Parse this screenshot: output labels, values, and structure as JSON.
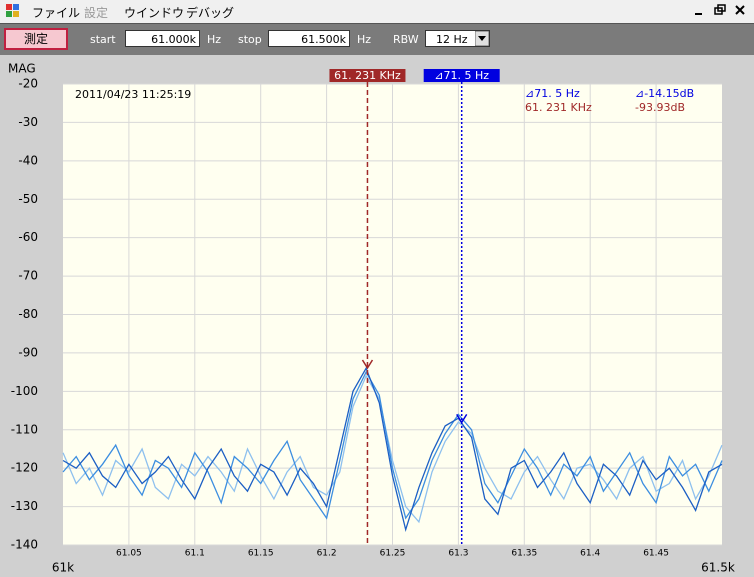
{
  "menu": {
    "items": [
      "ファイル",
      "設定",
      "ウインドウ",
      "デバッグ"
    ]
  },
  "toolbar": {
    "button": "測定",
    "start_label": "start",
    "start_value": "61.000k",
    "start_unit": "Hz",
    "stop_label": "stop",
    "stop_value": "61.500k",
    "stop_unit": "Hz",
    "rbw_label": "RBW",
    "rbw_value": "12 Hz"
  },
  "chart_data": {
    "type": "line",
    "y_label": "MAG",
    "x": [
      61.0,
      61.01,
      61.02,
      61.03,
      61.04,
      61.05,
      61.06,
      61.07,
      61.08,
      61.09,
      61.1,
      61.11,
      61.12,
      61.13,
      61.14,
      61.15,
      61.16,
      61.17,
      61.18,
      61.19,
      61.2,
      61.21,
      61.22,
      61.23,
      61.24,
      61.25,
      61.26,
      61.27,
      61.28,
      61.29,
      61.3,
      61.31,
      61.32,
      61.33,
      61.34,
      61.35,
      61.36,
      61.37,
      61.38,
      61.39,
      61.4,
      61.41,
      61.42,
      61.43,
      61.44,
      61.45,
      61.46,
      61.47,
      61.48,
      61.49,
      61.5
    ],
    "series": [
      {
        "color": "#1c5fc4",
        "values": [
          -118,
          -120,
          -116,
          -122,
          -125,
          -119,
          -124,
          -121,
          -117,
          -123,
          -128,
          -120,
          -115,
          -122,
          -126,
          -119,
          -121,
          -127,
          -120,
          -124,
          -130,
          -115,
          -100,
          -94,
          -103,
          -122,
          -136,
          -125,
          -116,
          -109,
          -107,
          -112,
          -128,
          -132,
          -120,
          -118,
          -125,
          -121,
          -116,
          -124,
          -129,
          -119,
          -122,
          -127,
          -118,
          -123,
          -120,
          -125,
          -131,
          -121,
          -119
        ]
      },
      {
        "color": "#3c8ee0",
        "values": [
          -121,
          -117,
          -123,
          -119,
          -114,
          -122,
          -127,
          -118,
          -120,
          -125,
          -116,
          -121,
          -129,
          -117,
          -120,
          -124,
          -118,
          -113,
          -123,
          -128,
          -133,
          -118,
          -102,
          -95,
          -101,
          -120,
          -133,
          -128,
          -118,
          -111,
          -106,
          -110,
          -124,
          -129,
          -122,
          -115,
          -120,
          -127,
          -119,
          -122,
          -117,
          -126,
          -121,
          -116,
          -124,
          -129,
          -117,
          -122,
          -119,
          -126,
          -118
        ]
      },
      {
        "color": "#8ec0ee",
        "values": [
          -116,
          -124,
          -120,
          -127,
          -118,
          -121,
          -115,
          -125,
          -128,
          -119,
          -122,
          -117,
          -121,
          -126,
          -115,
          -122,
          -128,
          -121,
          -117,
          -125,
          -127,
          -121,
          -104,
          -96,
          -102,
          -118,
          -130,
          -134,
          -121,
          -113,
          -108,
          -111,
          -120,
          -126,
          -128,
          -121,
          -117,
          -123,
          -128,
          -120,
          -119,
          -123,
          -128,
          -120,
          -117,
          -126,
          -124,
          -118,
          -128,
          -122,
          -114
        ]
      }
    ],
    "xlim": [
      61.0,
      61.5
    ],
    "xticks": [
      {
        "value": 61.0,
        "label": "61k"
      },
      61.05,
      61.1,
      61.15,
      61.2,
      61.25,
      61.3,
      61.35,
      61.4,
      61.45,
      {
        "value": 61.5,
        "label": "61.5k"
      }
    ],
    "ylim": [
      -140,
      -20
    ],
    "yticks": [
      -140,
      -130,
      -120,
      -110,
      -100,
      -90,
      -80,
      -70,
      -60,
      -50,
      -40,
      -30,
      -20
    ],
    "grid": true,
    "markers": [
      {
        "label": "61. 231 KHz",
        "x": 61.231,
        "y": -93.93,
        "color": "#a02828",
        "style": "dashed"
      },
      {
        "label": "⊿71. 5 Hz",
        "x": 61.3025,
        "y": -108.08,
        "color": "#0000e0",
        "style": "dotted"
      }
    ],
    "annotations": [
      {
        "text": "2011/04/23 11:25:19",
        "color": "#000000"
      },
      {
        "text": "⊿71. 5 Hz",
        "color": "#0000e0"
      },
      {
        "text": "61. 231 KHz",
        "color": "#a02828"
      },
      {
        "text": "⊿-14.15dB",
        "color": "#0000e0"
      },
      {
        "text": "-93.93dB",
        "color": "#a02828"
      }
    ]
  }
}
